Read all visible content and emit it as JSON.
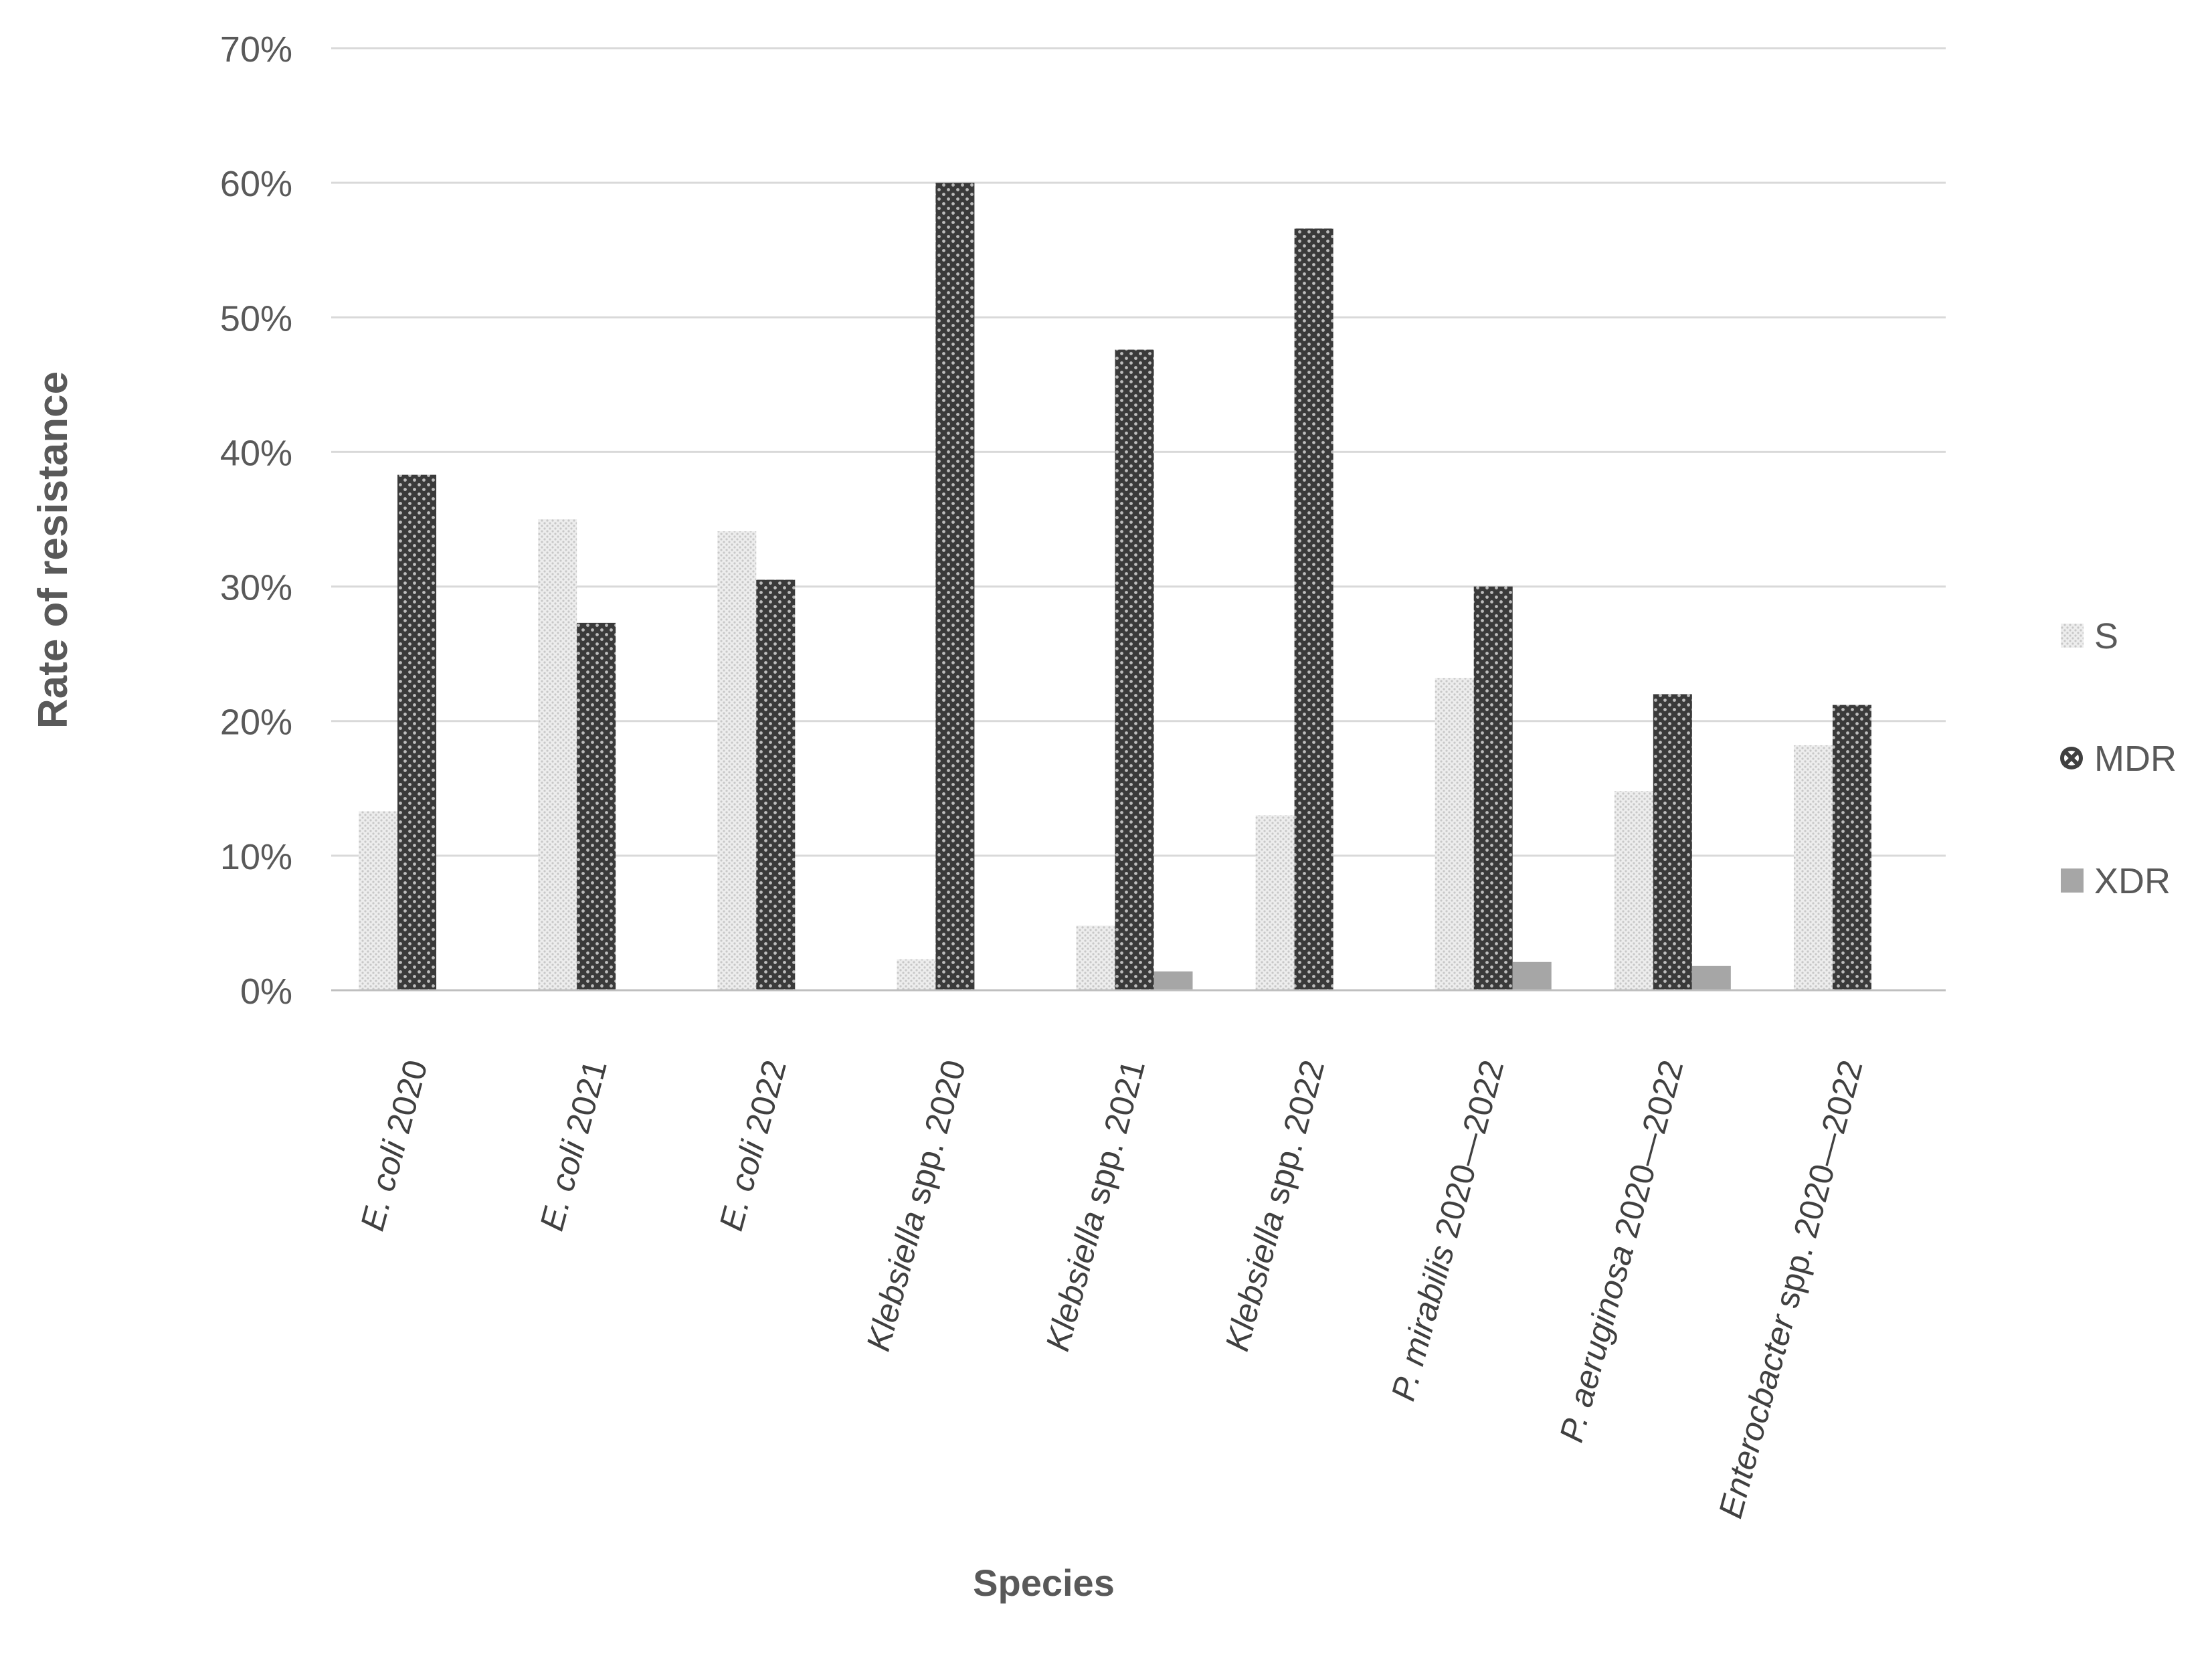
{
  "chart_data": {
    "type": "bar",
    "title": "",
    "xlabel": "Species",
    "ylabel": "Rate of resistance",
    "ylim": [
      0,
      0.7
    ],
    "yticks": [
      "0%",
      "10%",
      "20%",
      "30%",
      "40%",
      "50%",
      "60%",
      "70%"
    ],
    "grid": true,
    "legend_position": "right",
    "categories": [
      {
        "italic": "E. coli",
        "rest": " 2020"
      },
      {
        "italic": "E. coli",
        "rest": " 2021"
      },
      {
        "italic": "E. coli",
        "rest": " 2022"
      },
      {
        "italic": "Klebsiella",
        "rest": " spp. 2020"
      },
      {
        "italic": "Klebsiella",
        "rest": " spp. 2021"
      },
      {
        "italic": "Klebsiella",
        "rest": " spp. 2022"
      },
      {
        "italic": "P. mirabilis",
        "rest": "  2020—2022"
      },
      {
        "italic": "P. aeruginosa",
        "rest": " 2020—2022"
      },
      {
        "italic": "Enterocbacter",
        "rest": " spp. 2020—2022"
      }
    ],
    "series": [
      {
        "name": "S",
        "pattern": "dots-light",
        "color": "#d9d9d9",
        "values": [
          0.133,
          0.35,
          0.341,
          0.023,
          0.048,
          0.13,
          0.232,
          0.148,
          0.182
        ]
      },
      {
        "name": "MDR",
        "pattern": "crosshatch-dark",
        "color": "#404040",
        "values": [
          0.383,
          0.273,
          0.305,
          0.6,
          0.476,
          0.566,
          0.3,
          0.22,
          0.212
        ]
      },
      {
        "name": "XDR",
        "pattern": "solid-grey",
        "color": "#a6a6a6",
        "values": [
          0,
          0,
          0,
          0,
          0.014,
          0,
          0.021,
          0.018,
          0
        ]
      }
    ]
  }
}
